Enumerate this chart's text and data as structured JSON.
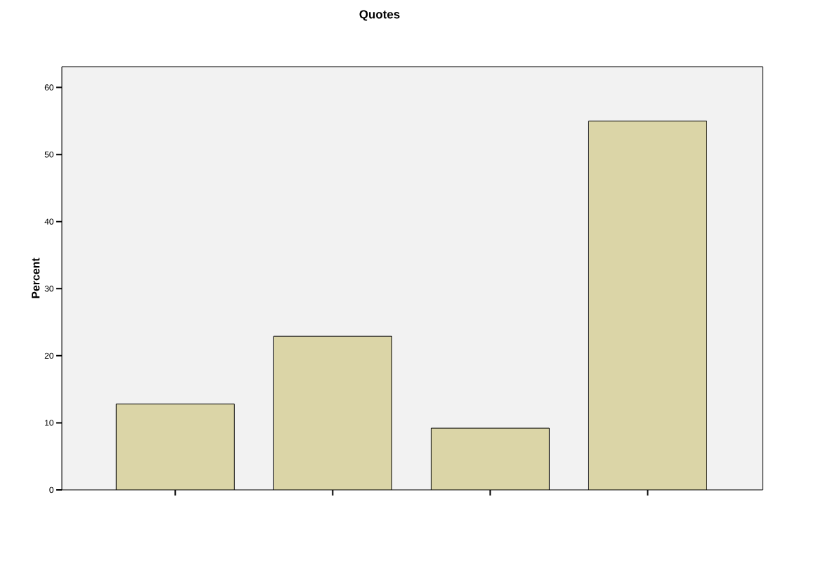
{
  "chart_data": {
    "type": "bar",
    "title": "Quotes",
    "ylabel": "Percent",
    "categories": [
      null,
      null,
      null,
      null
    ],
    "values": [
      12.8,
      22.9,
      9.2,
      55.0
    ],
    "color": "#dbd5a7",
    "ylim": [
      0,
      63.1
    ],
    "yticks": [
      0,
      10,
      20,
      30,
      40,
      50,
      60
    ],
    "grid": false
  }
}
